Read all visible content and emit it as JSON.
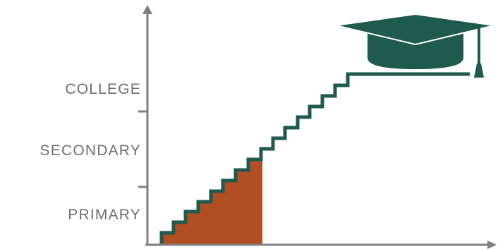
{
  "levels": [
    {
      "label": "COLLEGE"
    },
    {
      "label": "SECONDARY"
    },
    {
      "label": "PRIMARY"
    }
  ],
  "progress_level": "SECONDARY",
  "colors": {
    "axis": "#808080",
    "staircase": "#1e5a4e",
    "filled_progress": "#b24e23",
    "cap": "#1e5a4e",
    "label_text": "#6f6f6f"
  },
  "icons": {
    "goal": "graduation-cap-icon"
  }
}
